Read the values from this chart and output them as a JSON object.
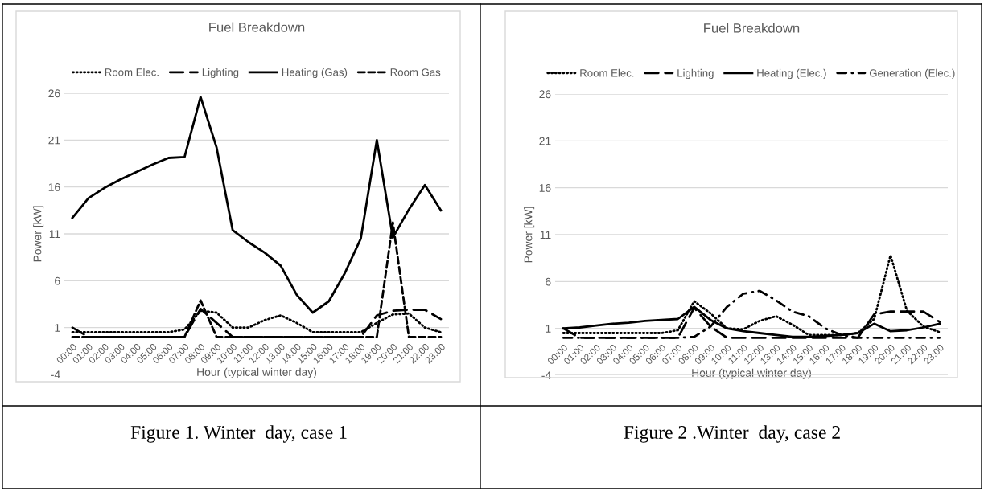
{
  "chart_data": [
    {
      "type": "line",
      "title": "Fuel Breakdown",
      "xlabel": "Hour (typical winter day)",
      "ylabel": "Power [kW]",
      "categories": [
        "00:00",
        "01:00",
        "02:00",
        "03:00",
        "04:00",
        "05:00",
        "06:00",
        "07:00",
        "08:00",
        "09:00",
        "10:00",
        "11:00",
        "12:00",
        "13:00",
        "14:00",
        "15:00",
        "16:00",
        "17:00",
        "18:00",
        "19:00",
        "20:00",
        "21:00",
        "22:00",
        "23:00"
      ],
      "series": [
        {
          "name": "Room Elec.",
          "color": "#000000",
          "line_style": "dotted",
          "values": [
            0.5,
            0.5,
            0.5,
            0.5,
            0.5,
            0.5,
            0.5,
            0.8,
            2.8,
            2.6,
            1.0,
            1.0,
            1.8,
            2.3,
            1.5,
            0.5,
            0.5,
            0.5,
            0.5,
            1.5,
            2.4,
            2.5,
            1.0,
            0.5
          ]
        },
        {
          "name": "Lighting",
          "color": "#000000",
          "line_style": "dashed",
          "values": [
            1.0,
            0,
            0,
            0,
            0,
            0,
            0,
            0,
            3.0,
            1.5,
            0,
            0,
            0,
            0,
            0,
            0,
            0,
            0,
            0,
            2.3,
            2.8,
            2.9,
            2.9,
            1.9
          ]
        },
        {
          "name": "Heating (Gas)",
          "color": "#000000",
          "line_style": "solid",
          "values": [
            12.7,
            14.8,
            15.9,
            16.8,
            17.6,
            18.4,
            19.1,
            19.2,
            25.6,
            20.2,
            11.4,
            10.1,
            9.0,
            7.6,
            4.5,
            2.6,
            3.8,
            6.8,
            10.5,
            21.0,
            10.6,
            13.6,
            16.2,
            13.5
          ]
        },
        {
          "name": "Room Gas",
          "color": "#000000",
          "line_style": "short dashed",
          "values": [
            0,
            0,
            0,
            0,
            0,
            0,
            0,
            0,
            3.9,
            0,
            0,
            0,
            0,
            0,
            0,
            0,
            0,
            0,
            0,
            0,
            12.2,
            0,
            0,
            0
          ]
        }
      ],
      "ylim": [
        -4,
        26
      ],
      "yticks": [
        -4,
        1,
        6,
        11,
        16,
        21,
        26
      ],
      "grid": "y",
      "legend": "top",
      "marker": "none",
      "annotations": [
        "Figure 1. Winter  day, case 1"
      ]
    },
    {
      "type": "line",
      "title": "Fuel Breakdown",
      "xlabel": "Hour (typical winter day)",
      "ylabel": "Power [kW]",
      "categories": [
        "00:00",
        "01:00",
        "02:00",
        "03:00",
        "04:00",
        "05:00",
        "06:00",
        "07:00",
        "08:00",
        "09:00",
        "10:00",
        "11:00",
        "12:00",
        "13:00",
        "14:00",
        "15:00",
        "16:00",
        "17:00",
        "18:00",
        "19:00",
        "20:00",
        "21:00",
        "22:00",
        "23:00"
      ],
      "series": [
        {
          "name": "Room Elec.",
          "color": "#000000",
          "line_style": "dotted",
          "values": [
            0.5,
            0.5,
            0.5,
            0.5,
            0.5,
            0.5,
            0.5,
            0.8,
            3.9,
            2.6,
            1.0,
            0.9,
            1.8,
            2.3,
            1.4,
            0.3,
            0.3,
            0.3,
            0.5,
            2.0,
            8.8,
            2.9,
            1.2,
            0.6
          ]
        },
        {
          "name": "Lighting",
          "color": "#000000",
          "line_style": "dashed",
          "values": [
            1.0,
            0,
            0,
            0,
            0,
            0,
            0,
            0,
            3.2,
            1.2,
            0,
            0,
            0,
            0,
            0,
            0,
            0,
            0,
            0,
            2.5,
            2.8,
            2.8,
            2.8,
            1.7
          ]
        },
        {
          "name": "Heating (Elec.)",
          "color": "#000000",
          "line_style": "solid",
          "values": [
            1.0,
            1.1,
            1.3,
            1.5,
            1.6,
            1.8,
            1.9,
            2.0,
            3.3,
            1.9,
            1.0,
            0.7,
            0.5,
            0.3,
            0.1,
            0.1,
            0.2,
            0.3,
            0.5,
            1.5,
            0.7,
            0.8,
            1.1,
            1.5
          ]
        },
        {
          "name": "Generation (Elec.)",
          "color": "#000000",
          "line_style": "dashdot",
          "values": [
            0,
            0,
            0,
            0,
            0,
            0,
            0,
            0,
            0.1,
            1.2,
            3.3,
            4.7,
            5.0,
            4.0,
            2.8,
            2.3,
            1.0,
            0.3,
            0,
            0,
            0,
            0,
            0,
            0
          ]
        }
      ],
      "ylim": [
        -4,
        26
      ],
      "yticks": [
        -4,
        1,
        6,
        11,
        16,
        21,
        26
      ],
      "grid": "y",
      "legend": "top",
      "marker": "none",
      "annotations": [
        "Figure 2 .Winter  day, case 2"
      ]
    }
  ]
}
